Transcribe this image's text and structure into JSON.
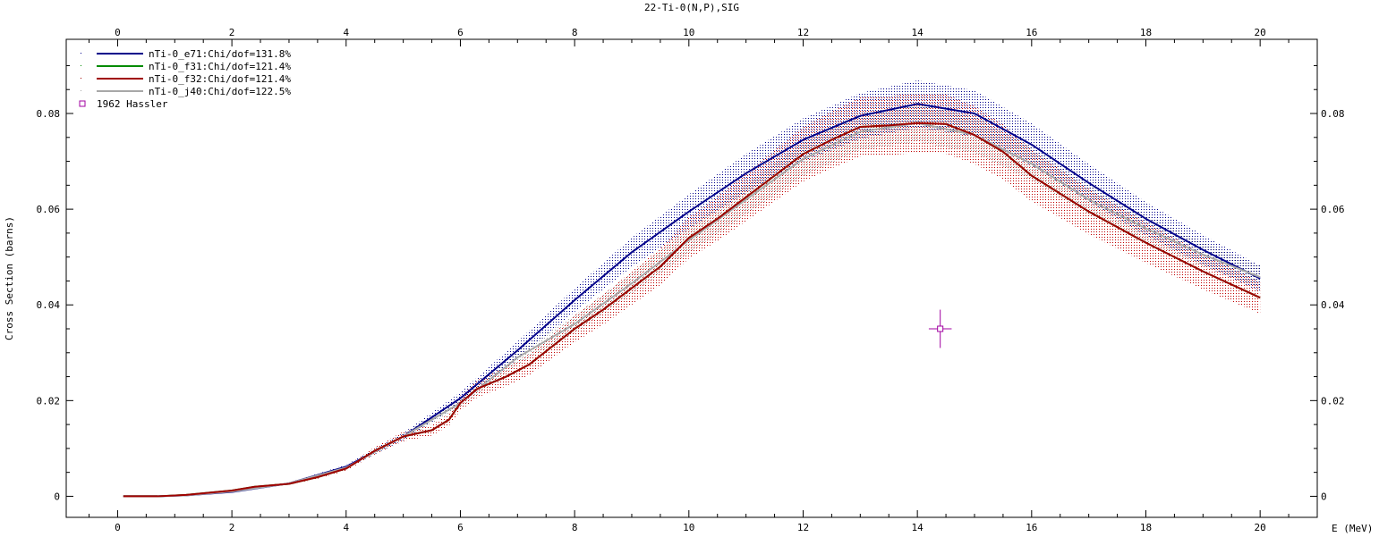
{
  "chart_data": {
    "type": "line",
    "title": "22-Ti-0(N,P),SIG",
    "xlabel": "E (MeV)",
    "ylabel": "Cross Section (barns)",
    "xlim": [
      -0.9,
      21.0
    ],
    "ylim": [
      -0.0044,
      0.0955
    ],
    "x_ticks": [
      0,
      2,
      4,
      6,
      8,
      10,
      12,
      14,
      16,
      18,
      20
    ],
    "x_tick_labels": [
      "0",
      "2",
      "4",
      "6",
      "8",
      "10",
      "12",
      "14",
      "16",
      "18",
      "20"
    ],
    "y_ticks": [
      0,
      0.02,
      0.04,
      0.06,
      0.08
    ],
    "y_tick_labels": [
      "0",
      "0.02",
      "0.04",
      "0.06",
      "0.08"
    ],
    "grid": false,
    "legend_position": "top-left",
    "colors": {
      "e71": "#00008b",
      "f31": "#008b00",
      "f32": "#a00000",
      "j40": "#a8a8a8",
      "exp": "#a000a0"
    },
    "series": [
      {
        "key": "e71",
        "name": "nTi-0_e71:Chi/dof=131.8%",
        "color": "#00008b",
        "uncertainty_fraction": 0.06,
        "x": [
          0.1,
          0.7,
          1.2,
          2.0,
          3.0,
          4.0,
          5.0,
          6.0,
          7.0,
          8.0,
          9.0,
          10.0,
          11.0,
          12.0,
          13.0,
          14.0,
          15.0,
          16.0,
          17.0,
          18.0,
          19.0,
          20.0
        ],
        "y": [
          0.0,
          0.0,
          0.0002,
          0.0009,
          0.0027,
          0.0062,
          0.0125,
          0.0205,
          0.0305,
          0.041,
          0.051,
          0.0595,
          0.0675,
          0.0745,
          0.0795,
          0.082,
          0.08,
          0.0735,
          0.0655,
          0.058,
          0.0515,
          0.0455
        ]
      },
      {
        "key": "f31",
        "name": "nTi-0_f31:Chi/dof=121.4%",
        "color": "#008b00",
        "uncertainty_fraction": 0.0,
        "x": [
          0.1,
          0.7,
          1.2,
          2.0,
          2.4,
          3.0,
          3.5,
          4.0,
          4.5,
          5.0,
          5.5,
          5.8,
          6.0,
          6.3,
          6.8,
          7.2,
          8.0,
          8.5,
          9.0,
          9.5,
          10.0,
          10.5,
          11.0,
          11.5,
          12.0,
          12.5,
          13.0,
          13.5,
          14.0,
          14.5,
          15.0,
          15.5,
          16.0,
          17.0,
          18.0,
          19.0,
          20.0
        ],
        "y": [
          0.0,
          0.0,
          0.0003,
          0.0012,
          0.002,
          0.0026,
          0.004,
          0.0058,
          0.0095,
          0.0125,
          0.0138,
          0.016,
          0.0195,
          0.0225,
          0.025,
          0.0275,
          0.035,
          0.039,
          0.0435,
          0.048,
          0.054,
          0.058,
          0.0625,
          0.067,
          0.0715,
          0.0745,
          0.0772,
          0.0775,
          0.078,
          0.0778,
          0.0755,
          0.072,
          0.067,
          0.0595,
          0.053,
          0.047,
          0.0415
        ]
      },
      {
        "key": "f32",
        "name": "nTi-0_f32:Chi/dof=121.4%",
        "color": "#a00000",
        "uncertainty_fraction": 0.08,
        "x": [
          0.1,
          0.7,
          1.2,
          2.0,
          2.4,
          3.0,
          3.5,
          4.0,
          4.5,
          5.0,
          5.5,
          5.8,
          6.0,
          6.3,
          6.8,
          7.2,
          8.0,
          8.5,
          9.0,
          9.5,
          10.0,
          10.5,
          11.0,
          11.5,
          12.0,
          12.5,
          13.0,
          13.5,
          14.0,
          14.5,
          15.0,
          15.5,
          16.0,
          17.0,
          18.0,
          19.0,
          20.0
        ],
        "y": [
          0.0,
          0.0,
          0.0003,
          0.0012,
          0.002,
          0.0026,
          0.004,
          0.0058,
          0.0095,
          0.0125,
          0.0138,
          0.016,
          0.0195,
          0.0225,
          0.025,
          0.0275,
          0.035,
          0.039,
          0.0435,
          0.048,
          0.054,
          0.058,
          0.0625,
          0.067,
          0.0715,
          0.0745,
          0.0772,
          0.0775,
          0.078,
          0.0778,
          0.0755,
          0.072,
          0.067,
          0.0595,
          0.053,
          0.047,
          0.0415
        ]
      },
      {
        "key": "j40",
        "name": "nTi-0_j40:Chi/dof=122.5%",
        "color": "#a8a8a8",
        "uncertainty_fraction": 0.05,
        "x": [
          0.1,
          0.7,
          1.2,
          2.0,
          3.0,
          4.0,
          5.0,
          6.0,
          7.0,
          8.0,
          9.0,
          10.0,
          11.0,
          12.0,
          13.0,
          14.0,
          15.0,
          16.0,
          17.0,
          18.0,
          19.0,
          20.0
        ],
        "y": [
          0.0,
          0.0,
          0.0002,
          0.001,
          0.0027,
          0.006,
          0.0125,
          0.0195,
          0.029,
          0.036,
          0.0445,
          0.0535,
          0.062,
          0.0705,
          0.0762,
          0.078,
          0.0755,
          0.0695,
          0.062,
          0.056,
          0.0505,
          0.0458
        ]
      }
    ],
    "experimental": [
      {
        "name": "1962 Hassler",
        "color": "#a000a0",
        "x": 14.4,
        "y": 0.035,
        "x_err": 0.2,
        "y_err": 0.004
      }
    ]
  }
}
